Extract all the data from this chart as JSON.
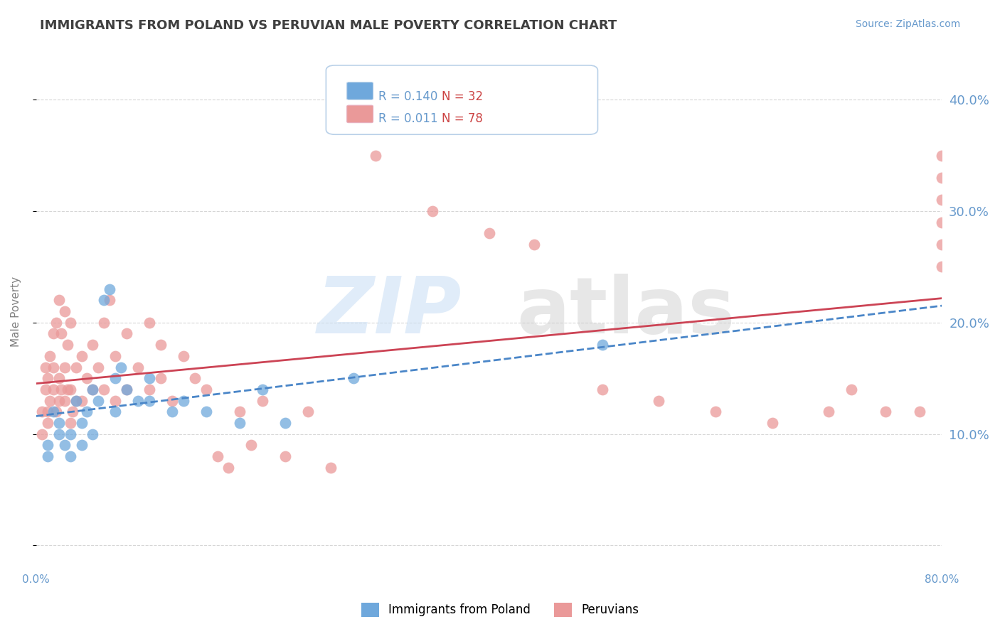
{
  "title": "IMMIGRANTS FROM POLAND VS PERUVIAN MALE POVERTY CORRELATION CHART",
  "source": "Source: ZipAtlas.com",
  "xlabel": "",
  "ylabel": "Male Poverty",
  "r_poland": 0.14,
  "n_poland": 32,
  "r_peruvians": 0.011,
  "n_peruvians": 78,
  "xlim": [
    0.0,
    0.8
  ],
  "ylim": [
    -0.02,
    0.44
  ],
  "yticks": [
    0.0,
    0.1,
    0.2,
    0.3,
    0.4
  ],
  "ytick_labels": [
    "",
    "10.0%",
    "20.0%",
    "30.0%",
    "40.0%"
  ],
  "xticks": [
    0.0,
    0.1,
    0.2,
    0.3,
    0.4,
    0.5,
    0.6,
    0.7,
    0.8
  ],
  "xtick_labels": [
    "0.0%",
    "",
    "",
    "",
    "",
    "",
    "",
    "",
    "80.0%"
  ],
  "color_poland": "#6fa8dc",
  "color_peruvians": "#ea9999",
  "color_poland_line": "#4a86c8",
  "color_peruvians_line": "#cc4455",
  "background_color": "#ffffff",
  "grid_color": "#cccccc",
  "title_color": "#404040",
  "axis_label_color": "#808080",
  "tick_label_color": "#6699cc",
  "poland_scatter_x": [
    0.01,
    0.01,
    0.015,
    0.02,
    0.02,
    0.025,
    0.03,
    0.03,
    0.035,
    0.04,
    0.04,
    0.045,
    0.05,
    0.05,
    0.055,
    0.06,
    0.065,
    0.07,
    0.07,
    0.075,
    0.08,
    0.09,
    0.1,
    0.1,
    0.12,
    0.13,
    0.15,
    0.18,
    0.2,
    0.22,
    0.28,
    0.5
  ],
  "poland_scatter_y": [
    0.08,
    0.09,
    0.12,
    0.1,
    0.11,
    0.09,
    0.08,
    0.1,
    0.13,
    0.09,
    0.11,
    0.12,
    0.1,
    0.14,
    0.13,
    0.22,
    0.23,
    0.12,
    0.15,
    0.16,
    0.14,
    0.13,
    0.13,
    0.15,
    0.12,
    0.13,
    0.12,
    0.11,
    0.14,
    0.11,
    0.15,
    0.18
  ],
  "peru_scatter_x": [
    0.005,
    0.005,
    0.008,
    0.008,
    0.01,
    0.01,
    0.01,
    0.012,
    0.012,
    0.015,
    0.015,
    0.015,
    0.018,
    0.018,
    0.02,
    0.02,
    0.02,
    0.022,
    0.022,
    0.025,
    0.025,
    0.025,
    0.028,
    0.028,
    0.03,
    0.03,
    0.03,
    0.032,
    0.035,
    0.035,
    0.04,
    0.04,
    0.045,
    0.05,
    0.05,
    0.055,
    0.06,
    0.06,
    0.065,
    0.07,
    0.07,
    0.08,
    0.08,
    0.09,
    0.1,
    0.1,
    0.11,
    0.11,
    0.12,
    0.13,
    0.14,
    0.15,
    0.16,
    0.17,
    0.18,
    0.19,
    0.2,
    0.22,
    0.24,
    0.26,
    0.3,
    0.35,
    0.4,
    0.44,
    0.5,
    0.55,
    0.6,
    0.65,
    0.7,
    0.72,
    0.75,
    0.78,
    0.8,
    0.8,
    0.8,
    0.8,
    0.8,
    0.8
  ],
  "peru_scatter_y": [
    0.1,
    0.12,
    0.14,
    0.16,
    0.11,
    0.12,
    0.15,
    0.13,
    0.17,
    0.14,
    0.16,
    0.19,
    0.12,
    0.2,
    0.13,
    0.15,
    0.22,
    0.14,
    0.19,
    0.13,
    0.16,
    0.21,
    0.14,
    0.18,
    0.11,
    0.14,
    0.2,
    0.12,
    0.13,
    0.16,
    0.13,
    0.17,
    0.15,
    0.14,
    0.18,
    0.16,
    0.14,
    0.2,
    0.22,
    0.13,
    0.17,
    0.14,
    0.19,
    0.16,
    0.14,
    0.2,
    0.15,
    0.18,
    0.13,
    0.17,
    0.15,
    0.14,
    0.08,
    0.07,
    0.12,
    0.09,
    0.13,
    0.08,
    0.12,
    0.07,
    0.35,
    0.3,
    0.28,
    0.27,
    0.14,
    0.13,
    0.12,
    0.11,
    0.12,
    0.14,
    0.12,
    0.12,
    0.25,
    0.27,
    0.29,
    0.31,
    0.33,
    0.35
  ]
}
